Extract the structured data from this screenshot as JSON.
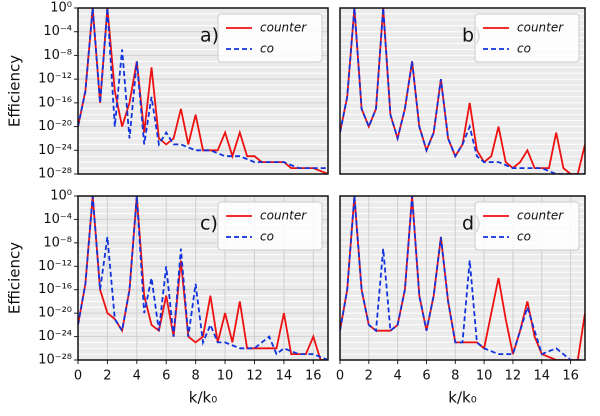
{
  "chart_data": [
    {
      "type": "line",
      "panel_label": "a)",
      "log_scale": true,
      "grid": true,
      "legend": "upper right",
      "ylim": [
        1e-28,
        1
      ],
      "yticks": [
        {
          "value": 1,
          "label": "10⁰"
        },
        {
          "value": 0.0001,
          "label": "10⁻⁴"
        },
        {
          "value": 1e-08,
          "label": "10⁻⁸"
        },
        {
          "value": 1e-12,
          "label": "10⁻¹²"
        },
        {
          "value": 1e-16,
          "label": "10⁻¹⁶"
        },
        {
          "value": 1e-20,
          "label": "10⁻²⁰"
        },
        {
          "value": 1e-24,
          "label": "10⁻²⁴"
        },
        {
          "value": 1e-28,
          "label": "10⁻²⁸"
        }
      ],
      "xlim": [
        0,
        17
      ],
      "y_label": "Efficiency",
      "series": [
        {
          "name": "counter",
          "color": "#ee1111",
          "dash": false,
          "x": [
            0,
            0.5,
            1,
            1.5,
            2,
            2.5,
            3,
            3.5,
            4,
            4.5,
            5,
            5.5,
            6,
            6.5,
            7,
            7.5,
            8,
            8.5,
            9,
            9.5,
            10,
            10.5,
            11,
            11.5,
            12,
            12.5,
            13,
            13.5,
            14,
            14.5,
            15,
            16,
            17
          ],
          "values": [
            1e-20,
            1e-14,
            1,
            1e-16,
            1,
            1e-14,
            1e-20,
            1e-16,
            1e-09,
            1e-21,
            1e-10,
            1e-22,
            1e-23,
            1e-22,
            1e-17,
            1e-23,
            1e-18,
            1e-24,
            1e-24,
            1e-24,
            1e-21,
            1e-25,
            1e-21,
            1e-25,
            1e-25,
            1e-26,
            1e-26,
            1e-26,
            1e-26,
            1e-27,
            1e-27,
            1e-27,
            1e-28
          ]
        },
        {
          "name": "co",
          "color": "#1133dd",
          "dash": true,
          "x": [
            0,
            0.5,
            1,
            1.5,
            2,
            2.5,
            3,
            3.5,
            4,
            4.5,
            5,
            5.5,
            6,
            6.5,
            7,
            8,
            9,
            10,
            11,
            12,
            13,
            14,
            15,
            16,
            17
          ],
          "values": [
            1e-20,
            1e-14,
            1,
            1e-16,
            1,
            1e-20,
            1e-07,
            1e-22,
            1e-09,
            1e-23,
            1e-15,
            1e-23,
            1e-21,
            1e-23,
            1e-23,
            1e-24,
            1e-24,
            1e-25,
            1e-25,
            1e-26,
            1e-26,
            1e-26,
            1e-27,
            1e-27,
            1e-27
          ]
        }
      ]
    },
    {
      "type": "line",
      "panel_label": "b)",
      "log_scale": true,
      "grid": true,
      "legend": "upper right",
      "ylim": [
        1e-28,
        1
      ],
      "xlim": [
        0,
        17
      ],
      "series": [
        {
          "name": "counter",
          "color": "#ee1111",
          "dash": false,
          "x": [
            0,
            0.5,
            1,
            1.5,
            2,
            2.5,
            3,
            3.5,
            4,
            4.5,
            5,
            5.5,
            6,
            6.5,
            7,
            7.5,
            8,
            8.5,
            9,
            9.5,
            10,
            10.5,
            11,
            11.5,
            12,
            12.5,
            13,
            13.5,
            14,
            14.5,
            15,
            15.5,
            16,
            16.5,
            17
          ],
          "values": [
            1e-21,
            1e-15,
            1,
            1e-17,
            1e-20,
            1e-17,
            1,
            1e-18,
            1e-22,
            1e-17,
            1e-09,
            1e-20,
            1e-24,
            1e-21,
            1e-12,
            1e-22,
            1e-25,
            1e-23,
            1e-16,
            1e-24,
            1e-26,
            1e-25,
            1e-20,
            1e-26,
            1e-27,
            1e-26,
            1e-24,
            1e-27,
            1e-27,
            1e-27,
            1e-21,
            1e-27,
            1e-28,
            1e-28,
            1e-23
          ]
        },
        {
          "name": "co",
          "color": "#1133dd",
          "dash": true,
          "x": [
            0,
            0.5,
            1,
            1.5,
            2,
            2.5,
            3,
            3.5,
            4,
            4.5,
            5,
            5.5,
            6,
            6.5,
            7,
            7.5,
            8,
            8.5,
            9,
            9.5,
            10,
            11,
            12,
            13,
            14,
            15,
            16,
            17
          ],
          "values": [
            1e-21,
            1e-15,
            1,
            1e-17,
            1e-20,
            1e-17,
            1,
            1e-18,
            1e-22,
            1e-17,
            1e-09,
            1e-20,
            1e-24,
            1e-21,
            1e-12,
            1e-22,
            1e-25,
            1e-23,
            1e-20,
            1e-25,
            1e-26,
            1e-26,
            1e-27,
            1e-27,
            1e-27,
            1e-28,
            1e-28,
            1e-28
          ]
        }
      ]
    },
    {
      "type": "line",
      "panel_label": "c)",
      "log_scale": true,
      "grid": true,
      "legend": "upper right",
      "ylim": [
        1e-28,
        1
      ],
      "yticks": [
        {
          "value": 1,
          "label": "10⁰"
        },
        {
          "value": 0.0001,
          "label": "10⁻⁴"
        },
        {
          "value": 1e-08,
          "label": "10⁻⁸"
        },
        {
          "value": 1e-12,
          "label": "10⁻¹²"
        },
        {
          "value": 1e-16,
          "label": "10⁻¹⁶"
        },
        {
          "value": 1e-20,
          "label": "10⁻²⁰"
        },
        {
          "value": 1e-24,
          "label": "10⁻²⁴"
        },
        {
          "value": 1e-28,
          "label": "10⁻²⁸"
        }
      ],
      "xlim": [
        0,
        17
      ],
      "xticks": [
        0,
        2,
        4,
        6,
        8,
        10,
        12,
        14,
        16
      ],
      "x_label": "k/k₀",
      "y_label": "Efficiency",
      "series": [
        {
          "name": "counter",
          "color": "#ee1111",
          "dash": false,
          "x": [
            0,
            0.5,
            1,
            1.5,
            2,
            2.5,
            3,
            3.5,
            4,
            4.5,
            5,
            5.5,
            6,
            6.5,
            7,
            7.5,
            8,
            8.5,
            9,
            9.5,
            10,
            10.5,
            11,
            11.5,
            12,
            12.5,
            13,
            13.5,
            14,
            14.5,
            15,
            15.5,
            16,
            16.5,
            17
          ],
          "values": [
            1e-22,
            1e-15,
            1,
            1e-16,
            1e-20,
            1e-21,
            1e-23,
            1e-16,
            1,
            1e-17,
            1e-22,
            1e-23,
            1e-17,
            1e-24,
            1e-11,
            1e-24,
            1e-25,
            1e-24,
            1e-17,
            1e-25,
            1e-20,
            1e-25,
            1e-18,
            1e-26,
            1e-26,
            1e-26,
            1e-26,
            1e-26,
            1e-20,
            1e-27,
            1e-27,
            1e-27,
            1e-24,
            1e-28,
            1e-28
          ]
        },
        {
          "name": "co",
          "color": "#1133dd",
          "dash": true,
          "x": [
            0,
            0.5,
            1,
            1.5,
            2,
            2.5,
            3,
            3.5,
            4,
            4.5,
            5,
            5.5,
            6,
            6.5,
            7,
            7.5,
            8,
            8.5,
            9,
            9.5,
            10,
            11,
            12,
            13,
            13.5,
            14,
            15,
            16,
            17
          ],
          "values": [
            1e-22,
            1e-15,
            1,
            1e-16,
            1e-07,
            1e-21,
            1e-23,
            1e-16,
            1,
            1e-20,
            1e-14,
            1e-23,
            1e-12,
            1e-24,
            1e-09,
            1e-24,
            1e-15,
            1e-25,
            1e-22,
            1e-25,
            1e-25,
            1e-26,
            1e-26,
            1e-24,
            1e-27,
            1e-26,
            1e-27,
            1e-27,
            1e-28
          ]
        }
      ]
    },
    {
      "type": "line",
      "panel_label": "d)",
      "log_scale": true,
      "grid": true,
      "legend": "upper right",
      "ylim": [
        1e-28,
        1
      ],
      "xlim": [
        0,
        17
      ],
      "xticks": [
        0,
        2,
        4,
        6,
        8,
        10,
        12,
        14,
        16
      ],
      "x_label": "k/k₀",
      "series": [
        {
          "name": "counter",
          "color": "#ee1111",
          "dash": false,
          "x": [
            0,
            0.5,
            1,
            1.5,
            2,
            2.5,
            3,
            3.5,
            4,
            4.5,
            5,
            5.5,
            6,
            6.5,
            7,
            7.5,
            8,
            8.5,
            9,
            9.5,
            10,
            10.5,
            11,
            11.5,
            12,
            12.5,
            13,
            13.5,
            14,
            15,
            16,
            16.5,
            17
          ],
          "values": [
            1e-23,
            1e-16,
            1,
            1e-16,
            1e-22,
            1e-23,
            1e-23,
            1e-23,
            1e-22,
            1e-16,
            1,
            1e-17,
            1e-23,
            1e-17,
            1e-07,
            1e-18,
            1e-25,
            1e-25,
            1e-25,
            1e-25,
            1e-26,
            1e-20,
            1e-14,
            1e-21,
            1e-27,
            1e-23,
            1e-18,
            1e-24,
            1e-27,
            1e-28,
            1e-28,
            1e-28,
            1e-20
          ]
        },
        {
          "name": "co",
          "color": "#1133dd",
          "dash": true,
          "x": [
            0,
            0.5,
            1,
            1.5,
            2,
            2.5,
            3,
            3.5,
            4,
            4.5,
            5,
            5.5,
            6,
            6.5,
            7,
            7.5,
            8,
            8.5,
            9,
            9.5,
            10,
            11,
            12,
            13,
            14,
            15,
            16,
            17
          ],
          "values": [
            1e-23,
            1e-16,
            1,
            1e-16,
            1e-22,
            1e-23,
            1e-09,
            1e-23,
            1e-22,
            1e-16,
            1,
            1e-17,
            1e-23,
            1e-17,
            1e-07,
            1e-18,
            1e-25,
            1e-25,
            1e-11,
            1e-25,
            1e-26,
            1e-27,
            1e-27,
            1e-19,
            1e-27,
            1e-26,
            1e-28,
            1e-28
          ]
        }
      ]
    }
  ]
}
